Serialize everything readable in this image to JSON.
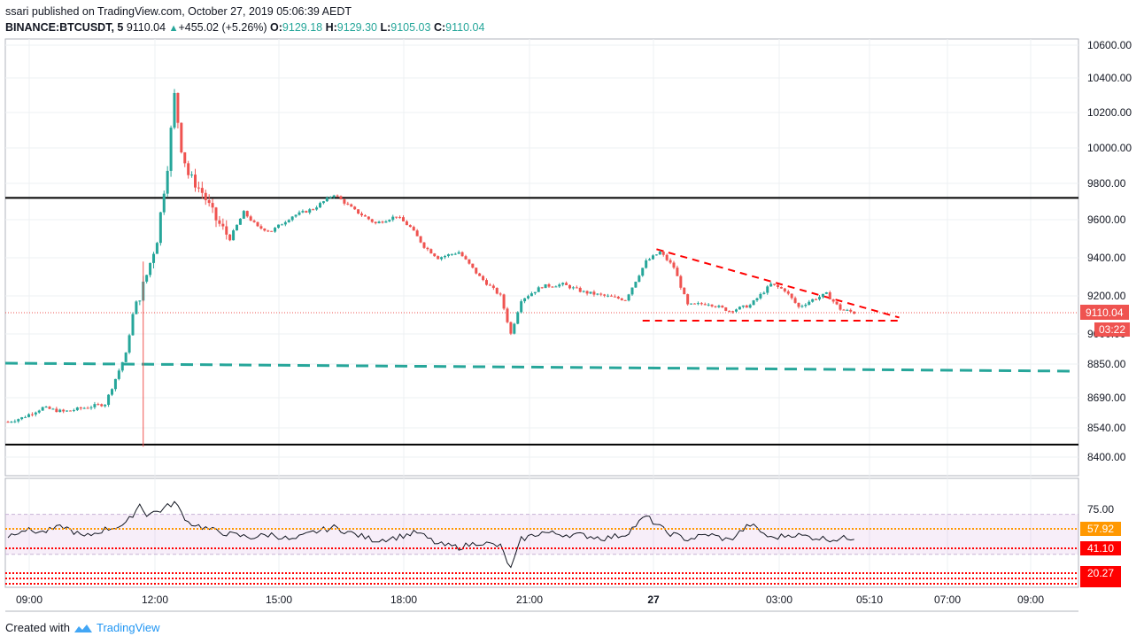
{
  "header": {
    "publisher": "ssari",
    "published_text": "published on TradingView.com, October 27, 2019 05:06:39 AEDT",
    "symbol": "BINANCE:BTCUSDT, 5",
    "last": "9110.04",
    "change_arrow": "▲",
    "change": "+455.02 (+5.26%)",
    "o_label": "O:",
    "o": "9129.18",
    "h_label": "H:",
    "h": "9129.30",
    "l_label": "L:",
    "l": "9105.03",
    "c_label": "C:",
    "c": "9110.04"
  },
  "footer": {
    "created_with": "Created with",
    "brand": "TradingView"
  },
  "chart_data": [
    {
      "type": "candlestick",
      "y_ticks": [
        "10600.00",
        "10400.00",
        "10200.00",
        "10000.00",
        "9800.00",
        "9600.00",
        "9400.00",
        "9200.00",
        "9000.00",
        "8850.00",
        "8690.00",
        "8540.00",
        "8400.00"
      ],
      "x_ticks": [
        "09:00",
        "12:00",
        "15:00",
        "18:00",
        "21:00",
        "27",
        "03:00",
        "05:10",
        "07:00",
        "09:00"
      ],
      "ylim": [
        8350,
        10660
      ],
      "last_price_label": "9110.04",
      "countdown_label": "03:22",
      "horizontal_lines": [
        {
          "name": "resistance",
          "price": 9720,
          "color": "#000000",
          "style": "solid"
        },
        {
          "name": "support",
          "price": 8460,
          "color": "#000000",
          "style": "solid"
        },
        {
          "name": "last-price",
          "price": 9110,
          "color": "#ef5350",
          "style": "dotted"
        }
      ],
      "trend_lines": [
        {
          "name": "channel-trend",
          "from": {
            "t": "07:55",
            "p": 8850
          },
          "to": {
            "t": "09:30",
            "p": 8825
          },
          "color": "#26a69a",
          "style": "dashed"
        },
        {
          "name": "triangle-top",
          "from": {
            "t": "00:15",
            "p": 9445
          },
          "to": {
            "t": "06:05",
            "p": 9085
          },
          "color": "#ff0000",
          "style": "dashed"
        },
        {
          "name": "triangle-bottom",
          "from": {
            "t": "23:55",
            "p": 9080
          },
          "to": {
            "t": "06:05",
            "p": 9080
          },
          "color": "#ff0000",
          "style": "dashed"
        }
      ],
      "series": [
        {
          "name": "BTCUSDT",
          "x": [
            "08:40",
            "09:00",
            "09:30",
            "10:00",
            "10:30",
            "11:00",
            "11:30",
            "11:40",
            "11:50",
            "12:00",
            "12:15",
            "12:30",
            "12:40",
            "12:50",
            "13:00",
            "13:20",
            "13:40",
            "14:00",
            "14:20",
            "14:40",
            "15:00",
            "15:30",
            "16:00",
            "16:30",
            "17:00",
            "17:30",
            "18:00",
            "18:20",
            "18:40",
            "19:00",
            "19:30",
            "20:00",
            "20:30",
            "20:45",
            "21:00",
            "21:30",
            "22:00",
            "22:30",
            "23:00",
            "23:30",
            "00:00",
            "00:20",
            "00:40",
            "01:00",
            "01:30",
            "02:00",
            "02:30",
            "03:00",
            "03:20",
            "03:40",
            "04:00",
            "04:20",
            "04:40",
            "05:00"
          ],
          "close": [
            8570,
            8590,
            8640,
            8620,
            8640,
            8660,
            8900,
            9100,
            9200,
            9310,
            9500,
            9900,
            10300,
            10000,
            9850,
            9750,
            9600,
            9500,
            9640,
            9560,
            9540,
            9620,
            9660,
            9740,
            9650,
            9580,
            9620,
            9560,
            9460,
            9400,
            9430,
            9300,
            9200,
            9000,
            9180,
            9250,
            9260,
            9220,
            9200,
            9180,
            9380,
            9430,
            9350,
            9150,
            9160,
            9120,
            9150,
            9260,
            9230,
            9140,
            9180,
            9210,
            9130,
            9110
          ]
        }
      ]
    },
    {
      "type": "line",
      "indicator": "RSI",
      "y_ticks": [
        "75.00"
      ],
      "labels": [
        {
          "value": "57.92",
          "color": "#ff9800"
        },
        {
          "value": "41.10",
          "color": "#ff0000"
        },
        {
          "value": "20.27",
          "color": "#ff0000"
        }
      ],
      "band": [
        30,
        70
      ],
      "series": [
        {
          "x": [
            "08:40",
            "09:00",
            "09:30",
            "10:00",
            "10:30",
            "11:00",
            "11:30",
            "11:50",
            "12:00",
            "12:20",
            "12:40",
            "13:00",
            "13:30",
            "14:00",
            "14:30",
            "15:00",
            "15:30",
            "16:00",
            "16:30",
            "17:00",
            "17:30",
            "18:00",
            "18:30",
            "19:00",
            "19:30",
            "20:00",
            "20:30",
            "20:45",
            "21:00",
            "21:30",
            "22:00",
            "22:30",
            "23:00",
            "23:30",
            "00:00",
            "00:30",
            "01:00",
            "01:30",
            "02:00",
            "02:30",
            "03:00",
            "03:30",
            "04:00",
            "04:30",
            "05:00"
          ],
          "values": [
            48,
            55,
            52,
            58,
            47,
            55,
            60,
            80,
            70,
            74,
            82,
            62,
            55,
            50,
            47,
            50,
            44,
            52,
            57,
            50,
            44,
            47,
            52,
            40,
            37,
            42,
            38,
            15,
            45,
            52,
            50,
            49,
            46,
            50,
            68,
            52,
            45,
            50,
            44,
            60,
            46,
            50,
            47,
            45,
            47
          ]
        }
      ]
    }
  ]
}
